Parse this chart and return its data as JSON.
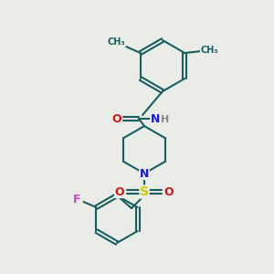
{
  "background_color": "#eaece8",
  "bond_color": "#1a5f5f",
  "bond_width": 1.5,
  "atom_colors": {
    "N": "#1a1acc",
    "O": "#cc1a1a",
    "S": "#cccc00",
    "F": "#cc44cc",
    "H": "#888888",
    "C": "#1a5f5f"
  },
  "font_size": 9,
  "fig_width": 3.0,
  "fig_height": 3.0,
  "dpi": 100
}
